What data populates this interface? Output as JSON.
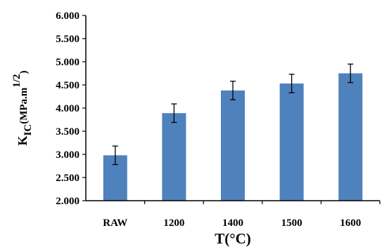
{
  "chart_data": {
    "type": "bar",
    "title": "",
    "categories": [
      "RAW",
      "1200",
      "1400",
      "1500",
      "1600"
    ],
    "series": [
      {
        "values": [
          2.98,
          3.89,
          4.38,
          4.53,
          4.75
        ],
        "error": [
          0.2,
          0.2,
          0.2,
          0.2,
          0.2
        ]
      }
    ],
    "xlabel": "T(°C)",
    "ylabel": {
      "base": "K",
      "subscript": "IC",
      "unit": "(MPa.m",
      "superscript": "1/2",
      "close": ")"
    },
    "ylim": [
      2.0,
      6.0
    ],
    "yticks": [
      "2.000",
      "2.500",
      "3.000",
      "3.500",
      "4.000",
      "4.500",
      "5.000",
      "5.500",
      "6.000"
    ],
    "grid": false,
    "legend": "none",
    "bar_color": "#4F81BD"
  }
}
